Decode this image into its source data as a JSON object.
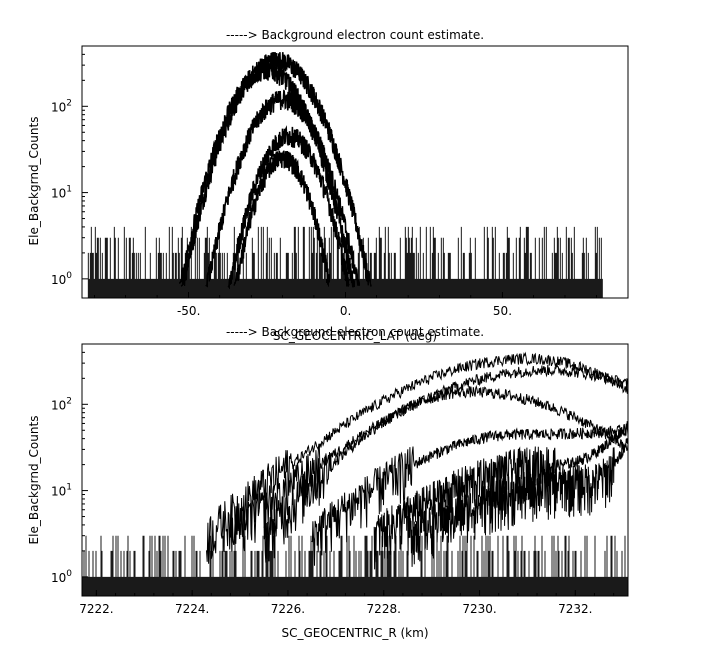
{
  "chart_data": [
    {
      "type": "line",
      "title": "-----> Background electron count estimate.",
      "xlabel": "SC_GEOCENTRIC_LAT (deg)",
      "ylabel": "Ele_Backgrnd_Counts",
      "xlim": [
        -84,
        90
      ],
      "ylim": [
        0.6,
        500
      ],
      "y_scale": "log",
      "x_ticks": [
        -50,
        0,
        50
      ],
      "x_tick_labels": [
        "-50.",
        "0.",
        "50."
      ],
      "y_ticks": [
        1,
        10,
        100
      ],
      "y_tick_labels": [
        "10^0",
        "10^1",
        "10^2"
      ],
      "grid": false,
      "noise_floor": {
        "x_range": [
          -82,
          82
        ],
        "levels": [
          1,
          2,
          3,
          4
        ]
      },
      "series": [
        {
          "peak_x": -22,
          "peak_y": 340,
          "width": 18
        },
        {
          "peak_x": -25,
          "peak_y": 260,
          "width": 17
        },
        {
          "peak_x": -20,
          "peak_y": 120,
          "width": 16
        },
        {
          "peak_x": -18,
          "peak_y": 45,
          "width": 14
        },
        {
          "peak_x": -20,
          "peak_y": 25,
          "width": 12
        }
      ]
    },
    {
      "type": "line",
      "title": "-----> Background electron count estimate.",
      "xlabel": "SC_GEOCENTRIC_R (km)",
      "ylabel": "Ele_Backgrnd_Counts",
      "xlim": [
        7221.7,
        7233.1
      ],
      "ylim": [
        0.6,
        500
      ],
      "y_scale": "log",
      "x_ticks": [
        7222,
        7224,
        7226,
        7228,
        7230,
        7232
      ],
      "x_tick_labels": [
        "7222.",
        "7224.",
        "7226.",
        "7228.",
        "7230.",
        "7232."
      ],
      "y_ticks": [
        1,
        10,
        100
      ],
      "y_tick_labels": [
        "10^0",
        "10^1",
        "10^2"
      ],
      "grid": false,
      "noise_floor": {
        "x_range": [
          7221.7,
          7233.1
        ],
        "levels": [
          1,
          2,
          3
        ]
      },
      "series": [
        {
          "x_start": 7224.3,
          "peak_x": 7231.0,
          "peak_y": 340,
          "x_end": 7233.1,
          "end_y": 150
        },
        {
          "x_start": 7224.8,
          "peak_x": 7231.4,
          "peak_y": 250,
          "x_end": 7233.1,
          "end_y": 170
        },
        {
          "x_start": 7225.5,
          "peak_x": 7229.8,
          "peak_y": 140,
          "x_end": 7233.1,
          "end_y": 30
        },
        {
          "x_start": 7226.5,
          "peak_x": 7230.8,
          "peak_y": 45,
          "x_end": 7233.1,
          "end_y": 50
        },
        {
          "x_start": 7227.8,
          "peak_x": 7231.6,
          "peak_y": 20,
          "x_end": 7233.1,
          "end_y": 60
        },
        {
          "x_start": 7228.5,
          "peak_x": 7232.3,
          "peak_y": 12,
          "x_end": 7233.1,
          "end_y": 40
        }
      ]
    }
  ]
}
